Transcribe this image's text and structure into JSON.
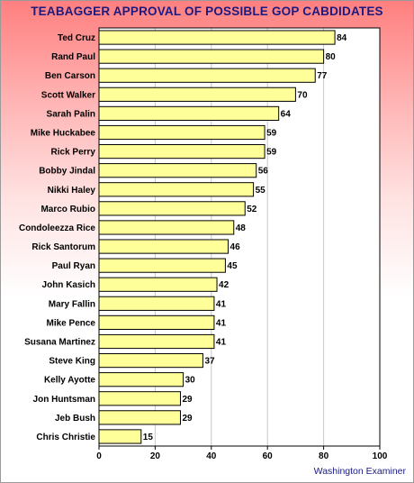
{
  "chart_data": {
    "type": "bar",
    "orientation": "horizontal",
    "title": "TEABAGGER APPROVAL OF POSSIBLE GOP CABDIDATES",
    "categories": [
      "Ted Cruz",
      "Rand Paul",
      "Ben Carson",
      "Scott Walker",
      "Sarah Palin",
      "Mike Huckabee",
      "Rick Perry",
      "Bobby Jindal",
      "Nikki Haley",
      "Marco Rubio",
      "Condoleezza Rice",
      "Rick Santorum",
      "Paul Ryan",
      "John Kasich",
      "Mary Fallin",
      "Mike Pence",
      "Susana Martinez",
      "Steve King",
      "Kelly Ayotte",
      "Jon Huntsman",
      "Jeb Bush",
      "Chris Christie"
    ],
    "values": [
      84,
      80,
      77,
      70,
      64,
      59,
      59,
      56,
      55,
      52,
      48,
      46,
      45,
      42,
      41,
      41,
      41,
      37,
      30,
      29,
      29,
      15
    ],
    "xlim": [
      0,
      100
    ],
    "xticks": [
      0,
      20,
      40,
      60,
      80,
      100
    ],
    "grid": true,
    "bar_color": "#ffff99",
    "bar_edge_color": "#000000",
    "title_color": "#1a1a80",
    "source": "Washington Examiner"
  }
}
